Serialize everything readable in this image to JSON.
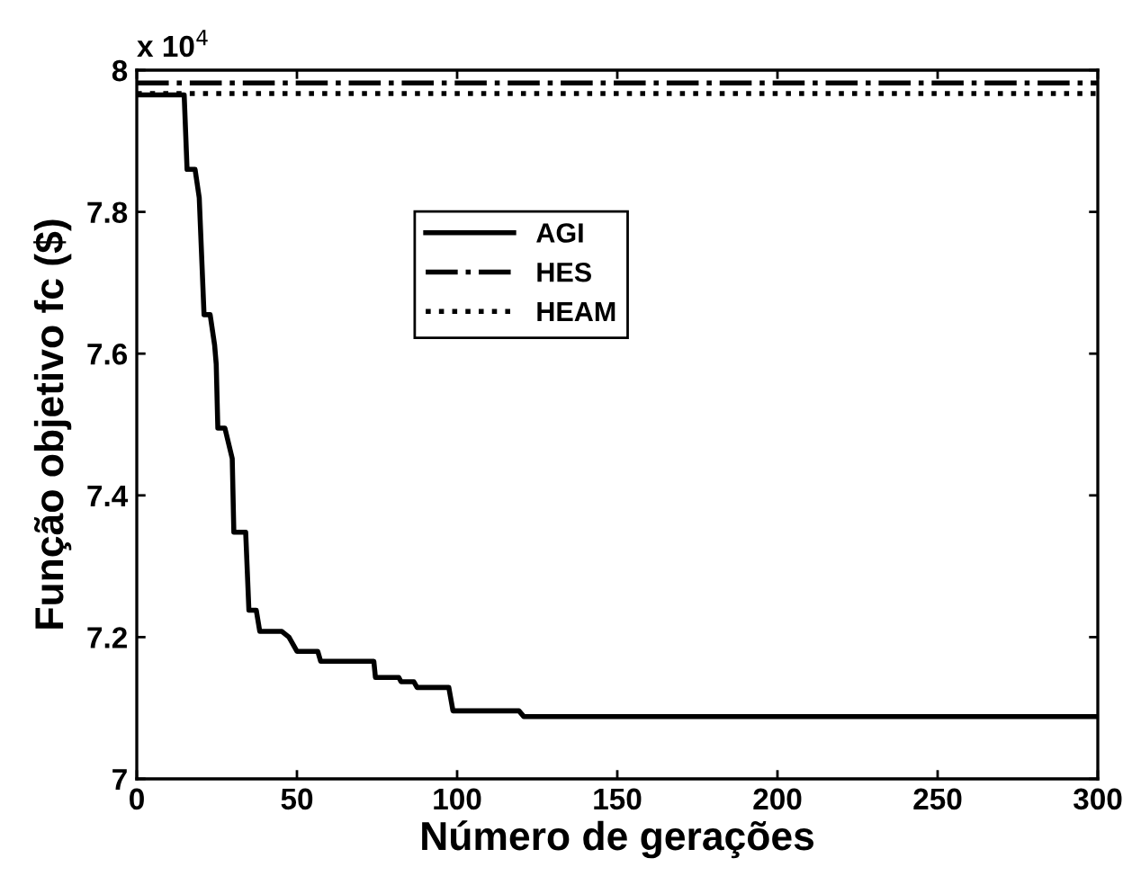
{
  "chart_data": {
    "type": "line",
    "xlabel": "Número de gerações",
    "ylabel": "Função objetivo fc ($)",
    "annotations": [
      "x 10$^{4}$"
    ],
    "xlim": [
      0,
      300
    ],
    "xticks": [
      0,
      50,
      100,
      150,
      200,
      250,
      300
    ],
    "ylim": [
      7,
      8
    ],
    "yticks": [
      7,
      7.2,
      7.4,
      7.6,
      7.8,
      8
    ],
    "legend": "top center",
    "grid": false,
    "series": [
      {
        "name": "AGI",
        "color": "#000000",
        "line_style": "solid",
        "x": [
          0,
          14.8,
          15.7,
          18.2,
          19.5,
          21,
          22.9,
          24.3,
          24.8,
          25.3,
          27.5,
          29.8,
          30.3,
          34,
          35,
          37.3,
          38.4,
          45.3,
          47.5,
          50,
          56.5,
          57.4,
          74,
          74.5,
          81.8,
          82.5,
          86.5,
          87.5,
          97.4,
          98.7,
          119.3,
          120.8,
          300
        ],
        "values": [
          7.965,
          7.965,
          7.86,
          7.86,
          7.82,
          7.655,
          7.655,
          7.612,
          7.585,
          7.495,
          7.495,
          7.452,
          7.348,
          7.348,
          7.238,
          7.238,
          7.208,
          7.208,
          7.2,
          7.18,
          7.18,
          7.166,
          7.166,
          7.143,
          7.143,
          7.137,
          7.137,
          7.129,
          7.129,
          7.096,
          7.096,
          7.088,
          7.088
        ]
      },
      {
        "name": "HES",
        "color": "#000000",
        "line_style": "dashdot",
        "x": [
          0,
          300
        ],
        "values": [
          7.982,
          7.982
        ]
      },
      {
        "name": "HEAM",
        "color": "#000000",
        "line_style": "dotted",
        "x": [
          0,
          300
        ],
        "values": [
          7.967,
          7.967
        ]
      }
    ]
  }
}
